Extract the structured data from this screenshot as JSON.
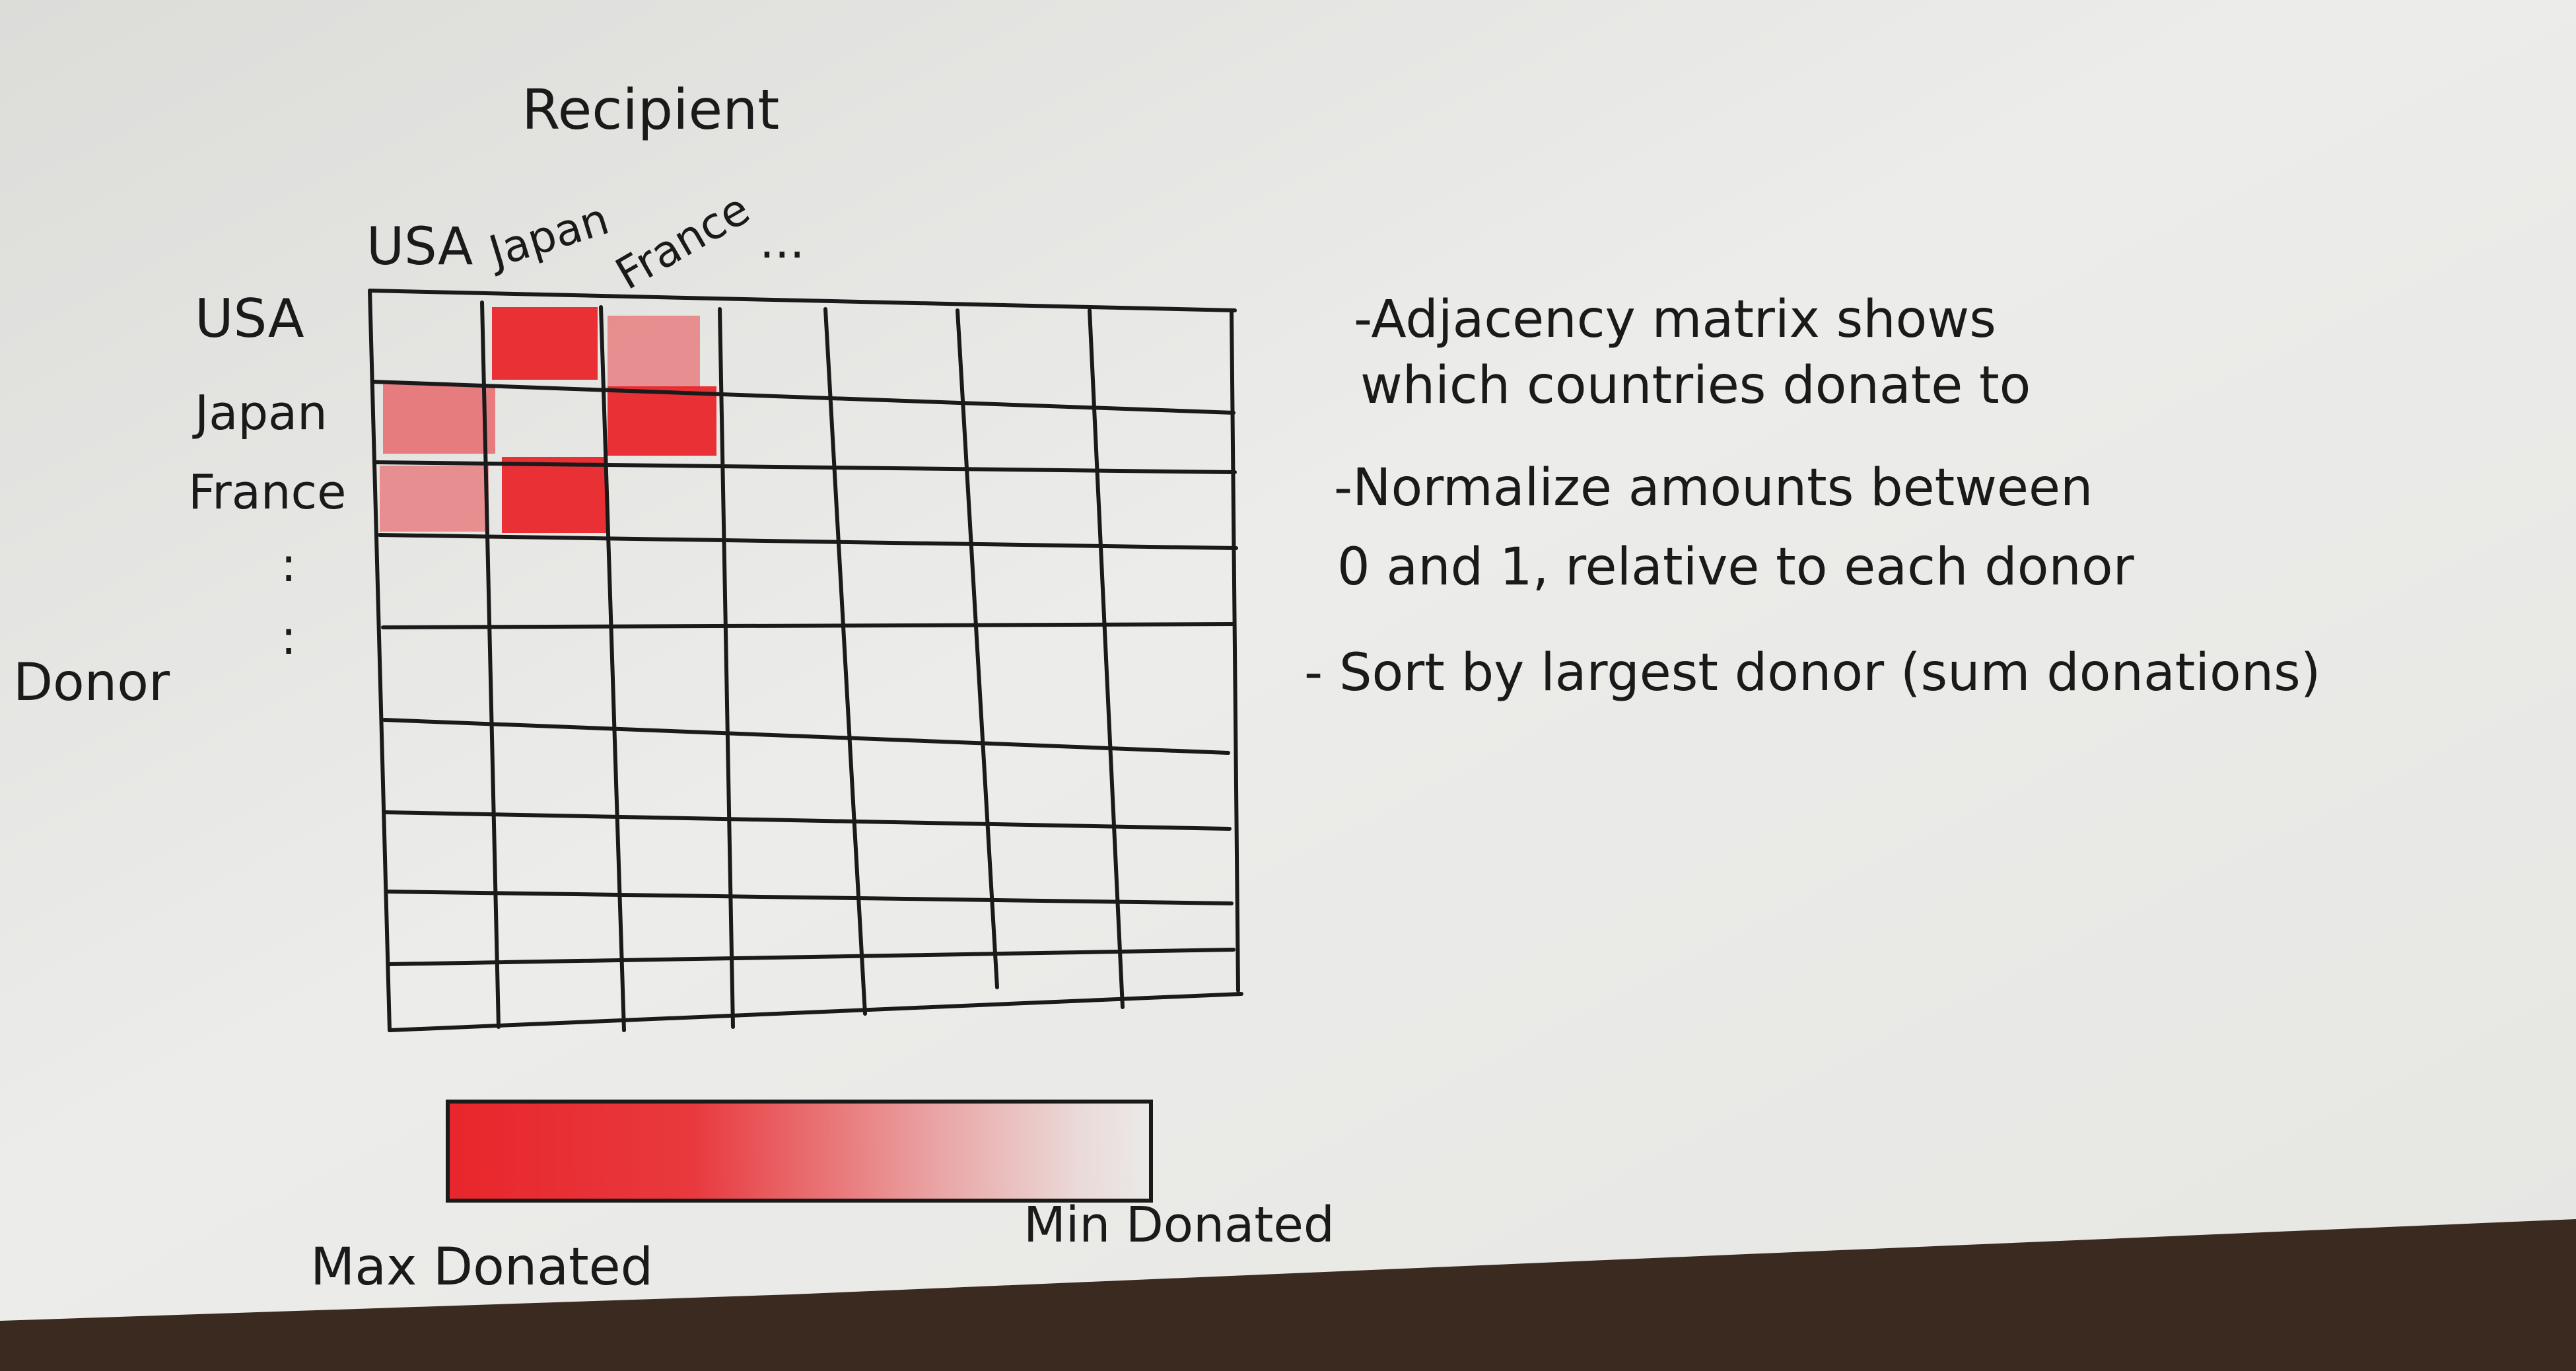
{
  "sketch": {
    "axis_labels": {
      "recipient": "Recipient",
      "donor": "Donor"
    },
    "column_labels": [
      "USA",
      "Japan",
      "France"
    ],
    "column_ellipsis": "...",
    "row_labels": [
      "USA",
      "Japan",
      "France"
    ],
    "row_ellipsis": ":",
    "notes": [
      "-Adjacency matrix shows",
      "which countries donate to",
      "-Normalize amounts between",
      "0 and 1, relative to each donor",
      "- Sort by largest donor (sum donations)"
    ],
    "legend": {
      "max_label": "Max Donated",
      "min_label": "Min Donated"
    },
    "colors": {
      "ink": "#1a1a1a",
      "highlight": "#e8262b",
      "paper": "#ececea",
      "table": "#3b2a20"
    }
  }
}
